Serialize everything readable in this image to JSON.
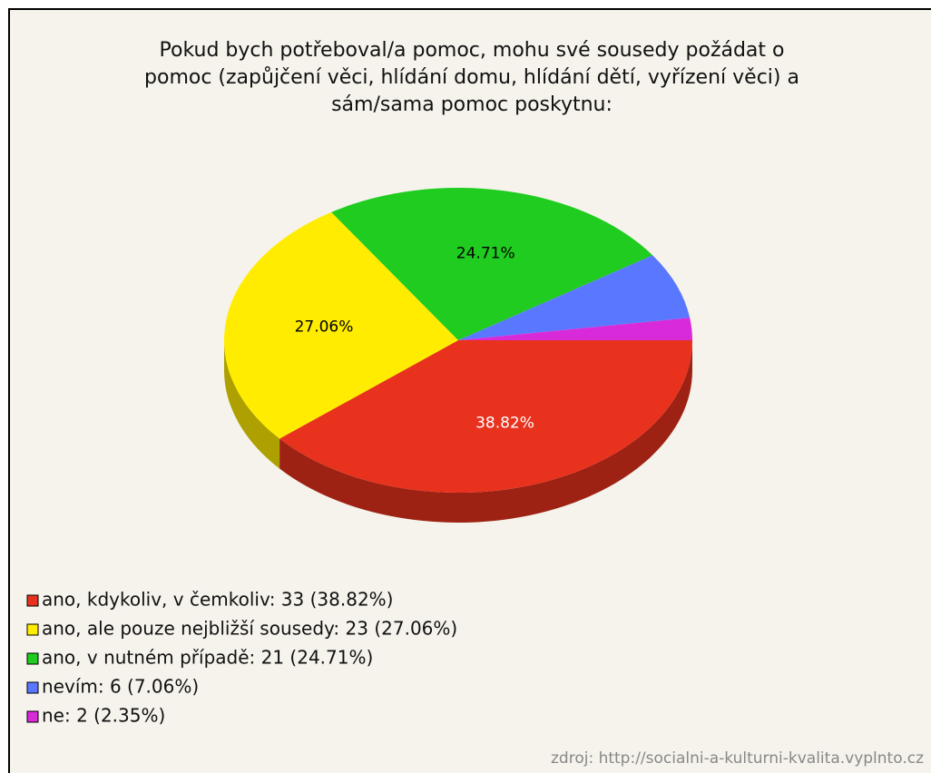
{
  "chart_data": {
    "type": "pie",
    "title": [
      "Pokud bych potřeboval/a pomoc, mohu své sousedy požádat o",
      "pomoc (zapůjčení věci, hlídání domu, hlídání dětí, vyřízení věci) a",
      "sám/sama pomoc poskytnu:"
    ],
    "categories": [
      "ano, kdykoliv, v čemkoliv: 33 (38.82%)",
      "ano, ale pouze nejbližší sousedy: 23 (27.06%)",
      "ano, v nutném případě: 21 (24.71%)",
      "nevím: 6 (7.06%)",
      "ne: 2 (2.35%)"
    ],
    "values": [
      38.82,
      27.06,
      24.71,
      7.06,
      2.35
    ],
    "value_labels": [
      "38.82%",
      "27.06%",
      "24.71%",
      null,
      null
    ],
    "colors": [
      "#e8321e",
      "#ffec00",
      "#1fcc1f",
      "#5a78ff",
      "#d82ad8"
    ],
    "label_colors": [
      "#ffffff",
      "#000000",
      "#000000",
      null,
      null
    ],
    "source": "zdroj: http://socialni-a-kulturni-kvalita.vyplnto.cz"
  }
}
